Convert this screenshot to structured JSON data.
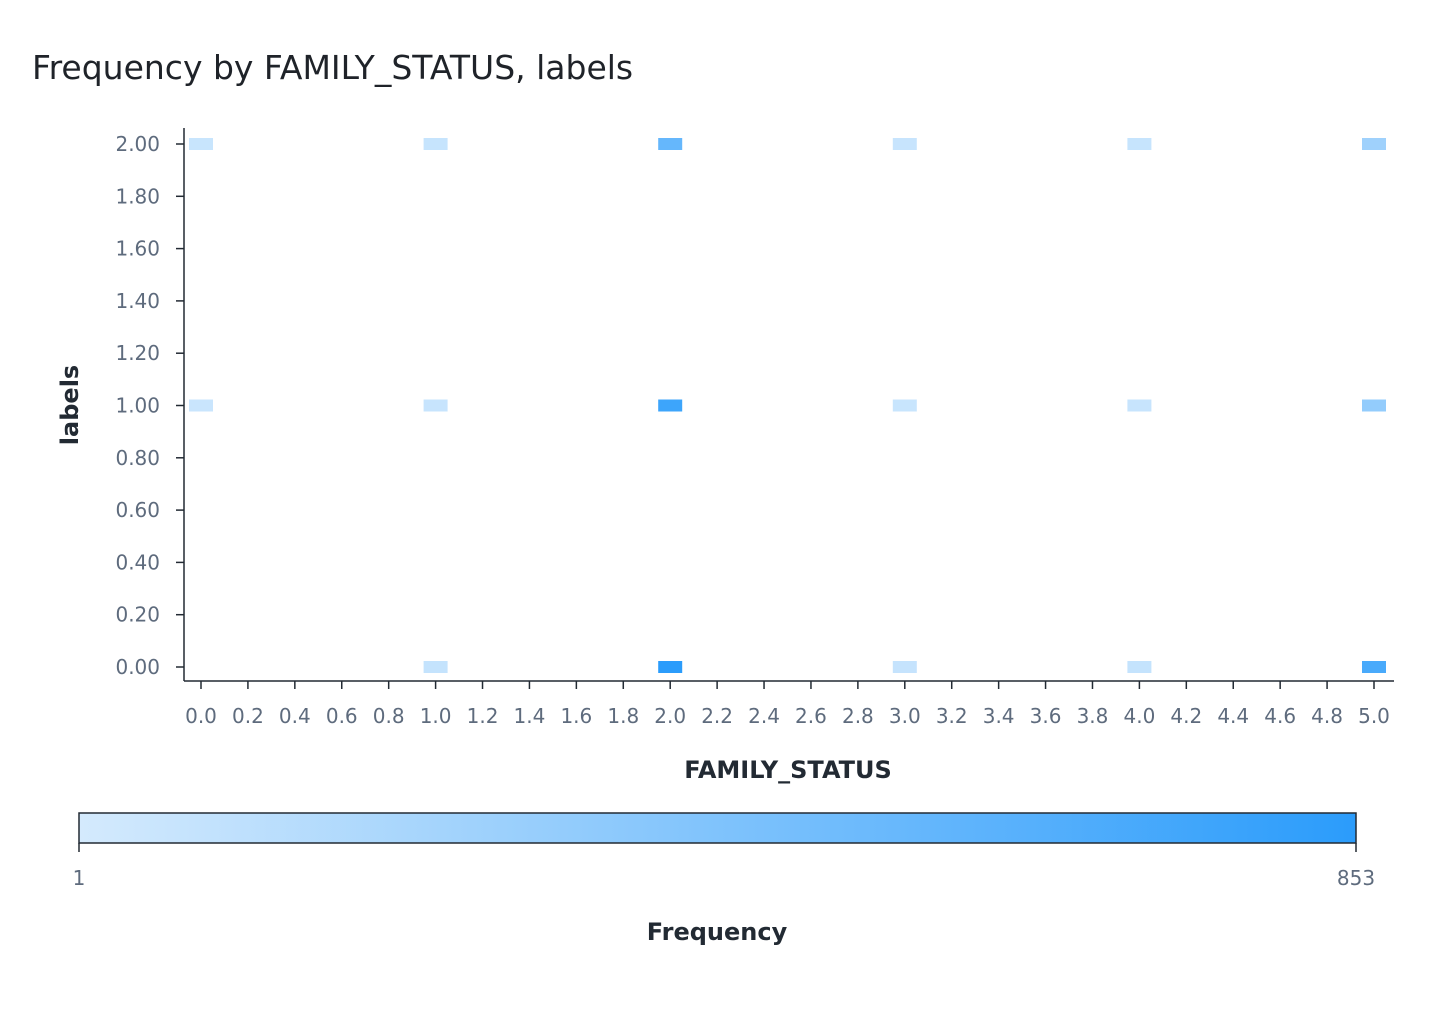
{
  "chart_data": {
    "type": "heatmap",
    "title": "Frequency by FAMILY_STATUS, labels",
    "xlabel": "FAMILY_STATUS",
    "ylabel": "labels",
    "xlim": [
      0.0,
      5.0
    ],
    "ylim": [
      0.0,
      2.0
    ],
    "x_ticks": [
      "0.0",
      "0.2",
      "0.4",
      "0.6",
      "0.8",
      "1.0",
      "1.2",
      "1.4",
      "1.6",
      "1.8",
      "2.0",
      "2.2",
      "2.4",
      "2.6",
      "2.8",
      "3.0",
      "3.2",
      "3.4",
      "3.6",
      "3.8",
      "4.0",
      "4.2",
      "4.4",
      "4.6",
      "4.8",
      "5.0"
    ],
    "y_ticks": [
      "0.00",
      "0.20",
      "0.40",
      "0.60",
      "0.80",
      "1.00",
      "1.20",
      "1.40",
      "1.60",
      "1.80",
      "2.00"
    ],
    "cells": [
      {
        "x": 0,
        "y": 2,
        "value": 60
      },
      {
        "x": 1,
        "y": 2,
        "value": 70
      },
      {
        "x": 2,
        "y": 2,
        "value": 560
      },
      {
        "x": 3,
        "y": 2,
        "value": 65
      },
      {
        "x": 4,
        "y": 2,
        "value": 70
      },
      {
        "x": 5,
        "y": 2,
        "value": 270
      },
      {
        "x": 0,
        "y": 1,
        "value": 55
      },
      {
        "x": 1,
        "y": 1,
        "value": 65
      },
      {
        "x": 2,
        "y": 1,
        "value": 760
      },
      {
        "x": 3,
        "y": 1,
        "value": 60
      },
      {
        "x": 4,
        "y": 1,
        "value": 65
      },
      {
        "x": 5,
        "y": 1,
        "value": 330
      },
      {
        "x": 1,
        "y": 0,
        "value": 80
      },
      {
        "x": 2,
        "y": 0,
        "value": 853
      },
      {
        "x": 3,
        "y": 0,
        "value": 75
      },
      {
        "x": 4,
        "y": 0,
        "value": 80
      },
      {
        "x": 5,
        "y": 0,
        "value": 700
      }
    ],
    "colorbar": {
      "label": "Frequency",
      "min": 1,
      "max": 853,
      "min_label": "1",
      "max_label": "853",
      "color_low": "#d4eafd",
      "color_high": "#2b9cfb"
    },
    "grid": false,
    "legend": "bottom"
  }
}
